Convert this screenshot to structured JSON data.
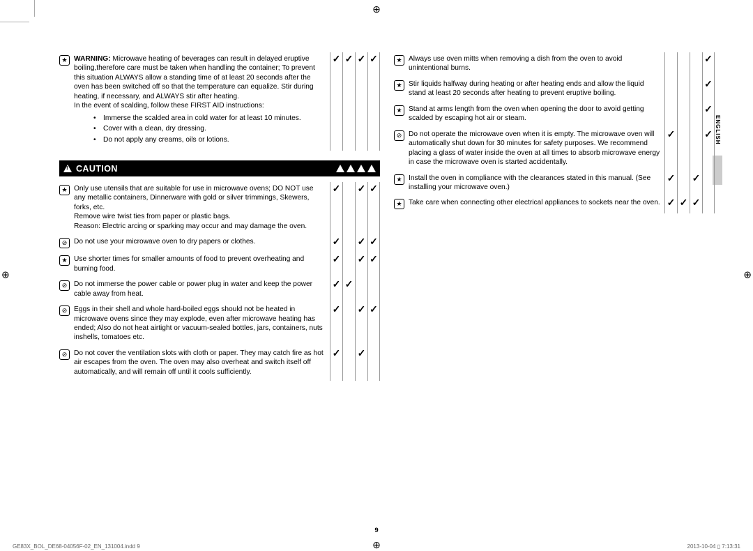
{
  "page_number": "9",
  "language_tab": "ENGLISH",
  "footer": {
    "left": "GE83X_BOL_DE68-04056F-02_EN_131004.indd   9",
    "right": "2013-10-04   ▯ 7:13:31"
  },
  "warning_top": {
    "bold_label": "WARNING:",
    "text": " Microwave heating of beverages can result in delayed eruptive boiling,therefore care must be taken when handling the container; To prevent this situation ALWAYS allow a standing time of at least 20 seconds after the oven has been switched off so that the temperature can equalize. Stir during heating, if necessary, and ALWAYS stir after heating.\nIn the event of scalding, follow these FIRST AID instructions:",
    "bullets": [
      "Immerse the scalded area in cold water for at least 10 minutes.",
      "Cover with a clean, dry dressing.",
      "Do not apply any creams, oils or lotions."
    ],
    "checks": [
      "✓",
      "✓",
      "✓",
      "✓"
    ]
  },
  "caution_title": "CAUTION",
  "left_rows": [
    {
      "icon": "★",
      "text": "Only use utensils that are suitable for use in microwave ovens; DO NOT use any metallic containers, Dinnerware with gold or silver trimmings, Skewers, forks, etc.\nRemove wire twist ties from paper or plastic bags.\nReason: Electric arcing or sparking may occur and may damage the oven.",
      "checks": [
        "✓",
        "",
        "✓",
        "✓"
      ]
    },
    {
      "icon": "⊘",
      "text": "Do not use your microwave oven to dry papers or clothes.",
      "checks": [
        "✓",
        "",
        "✓",
        "✓"
      ]
    },
    {
      "icon": "★",
      "text": "Use shorter times for smaller amounts of food to prevent overheating and burning food.",
      "checks": [
        "✓",
        "",
        "✓",
        "✓"
      ]
    },
    {
      "icon": "⊘",
      "text": "Do not immerse the power cable or power plug in water and keep the power cable away from heat.",
      "checks": [
        "✓",
        "✓",
        "",
        ""
      ]
    },
    {
      "icon": "⊘",
      "text": "Eggs in their shell and whole hard-boiled eggs should not be heated in microwave ovens since they may explode, even after microwave heating has ended; Also do not heat airtight or vacuum-sealed bottles, jars, containers, nuts inshells, tomatoes etc.",
      "checks": [
        "✓",
        "",
        "✓",
        "✓"
      ]
    },
    {
      "icon": "⊘",
      "text": "Do not cover the ventilation slots with cloth or paper. They may catch fire as hot air escapes from the oven. The oven may also overheat and switch itself off automatically, and will remain off until it cools sufficiently.",
      "checks": [
        "✓",
        "",
        "✓",
        ""
      ]
    }
  ],
  "right_rows": [
    {
      "icon": "★",
      "text": "Always use oven mitts when removing a dish from the oven to avoid unintentional burns.",
      "checks": [
        "",
        "",
        "",
        "✓"
      ]
    },
    {
      "icon": "★",
      "text": "Stir liquids halfway during heating or after heating ends and allow the liquid stand at least 20 seconds after heating to prevent eruptive boiling.",
      "checks": [
        "",
        "",
        "",
        "✓"
      ]
    },
    {
      "icon": "★",
      "text": "Stand at arms length from the oven when opening the door to avoid getting scalded by escaping hot air or steam.",
      "checks": [
        "",
        "",
        "",
        "✓"
      ]
    },
    {
      "icon": "⊘",
      "text": "Do not operate the microwave oven when it is empty. The microwave oven will automatically shut down for 30 minutes for safety purposes. We recommend placing a glass of water inside the oven at all times to absorb microwave energy in case the microwave oven is started accidentally.",
      "checks": [
        "✓",
        "",
        "",
        "✓"
      ]
    },
    {
      "icon": "★",
      "text": "Install the oven in compliance with the clearances stated in this manual. (See installing your microwave oven.)",
      "checks": [
        "✓",
        "",
        "✓",
        ""
      ]
    },
    {
      "icon": "★",
      "text": "Take care when connecting other electrical appliances to sockets near the oven.",
      "checks": [
        "✓",
        "✓",
        "✓",
        ""
      ]
    }
  ]
}
